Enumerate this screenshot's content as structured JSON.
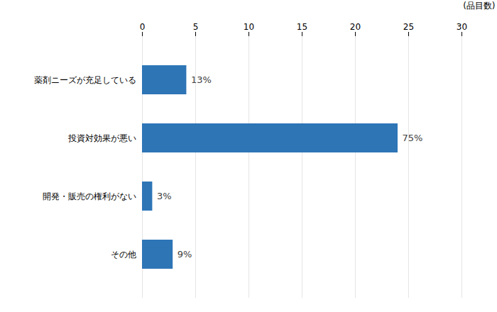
{
  "chart_data": {
    "type": "bar",
    "orientation": "horizontal",
    "categories": [
      "薬剤ニーズが充足している",
      "投資対効果が悪い",
      "開発・販売の権利がない",
      "その他"
    ],
    "values": [
      4.16,
      24.0,
      0.96,
      2.88
    ],
    "value_labels": [
      "13%",
      "75%",
      "3%",
      "9%"
    ],
    "data_labels": true,
    "color": "#2E75B6",
    "xlim": [
      0,
      30
    ],
    "xticks": [
      0,
      5,
      10,
      15,
      20,
      25,
      30
    ],
    "xlabel": "(品目数)",
    "grid": true
  }
}
